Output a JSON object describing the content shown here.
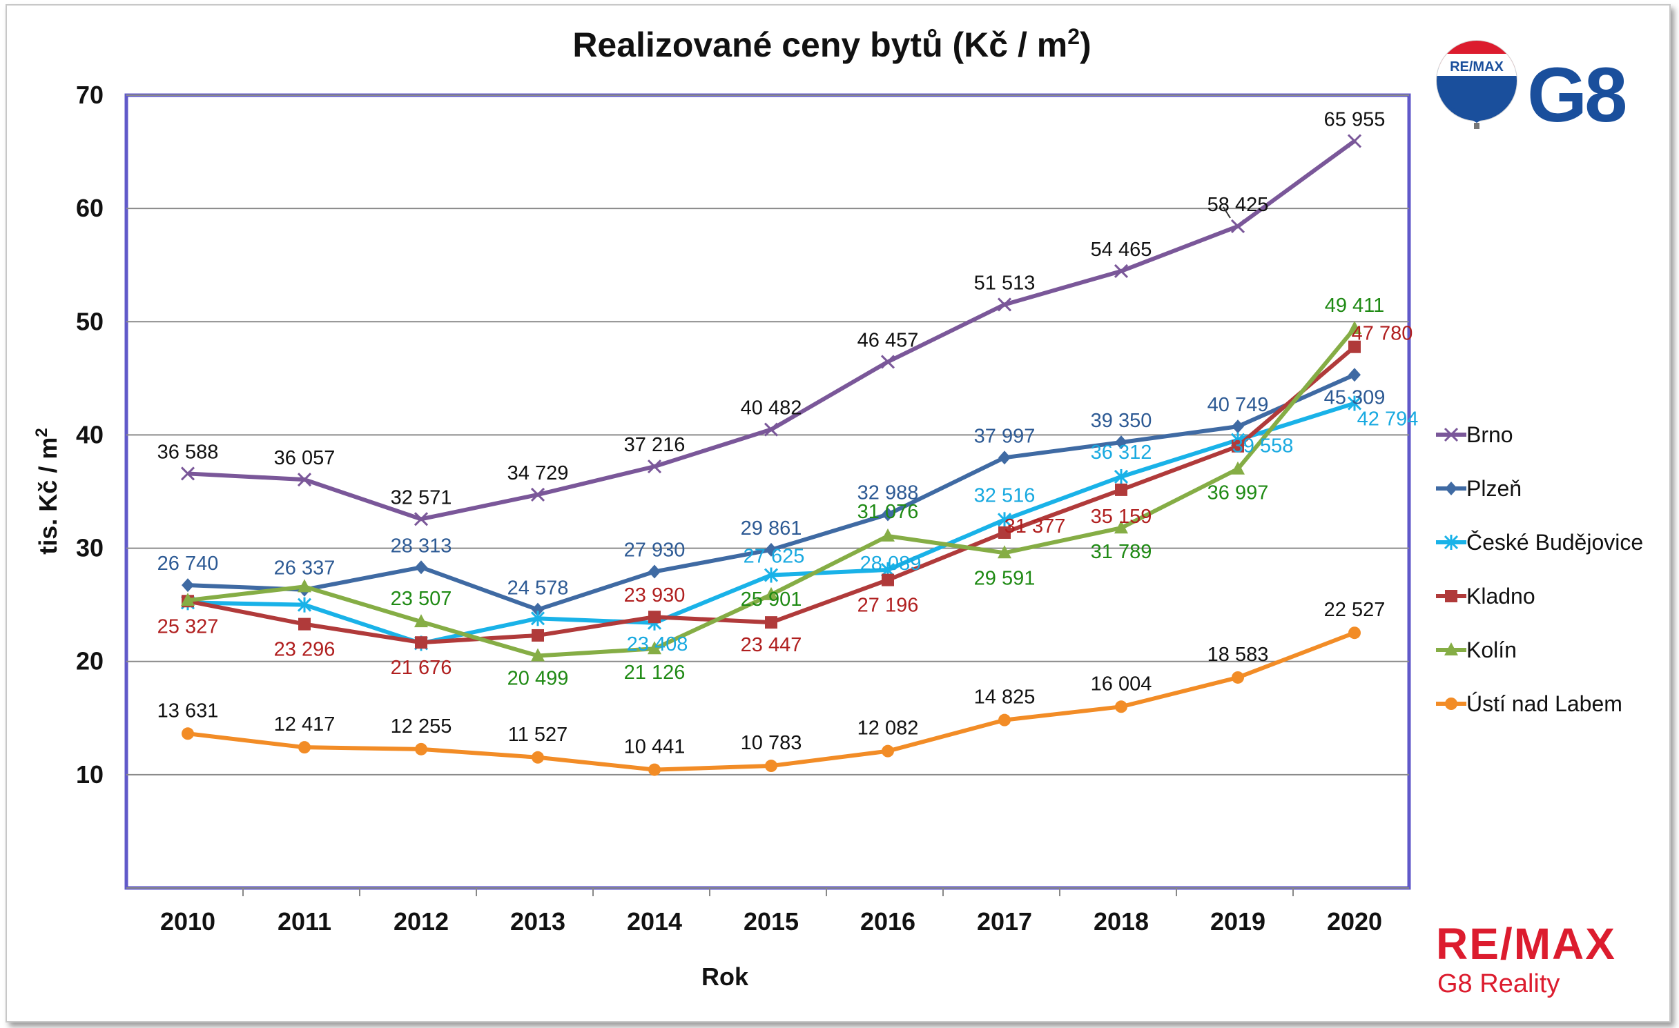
{
  "brand": {
    "balloon_text": "RE/MAX",
    "office_code": "G8",
    "wordmark": "RE/MAX",
    "office_name": "G8 Reality",
    "colors": {
      "red": "#dc1c2e",
      "blue": "#1a4f9c"
    }
  },
  "chart_data": {
    "type": "line",
    "title": "Realizované ceny bytů (Kč / m",
    "title_sup": "2",
    "title_end": ")",
    "ylabel": "tis. Kč / m",
    "ylabel_sup": "2",
    "xlabel": "Rok",
    "ylim": [
      0,
      70
    ],
    "yticks": [
      "10",
      "20",
      "30",
      "40",
      "50",
      "60",
      "70"
    ],
    "categories": [
      "2010",
      "2011",
      "2012",
      "2013",
      "2014",
      "2015",
      "2016",
      "2017",
      "2018",
      "2019",
      "2020"
    ],
    "grid": true,
    "legend_position": "right",
    "series": [
      {
        "name": "Brno",
        "color": "#7a5799",
        "label_color": "#111111",
        "marker": "x",
        "values": [
          36.588,
          36.057,
          32.571,
          34.729,
          37.216,
          40.482,
          46.457,
          51.513,
          54.465,
          58.425,
          65.955
        ],
        "labels": [
          "36 588",
          "36 057",
          "32 571",
          "34 729",
          "37 216",
          "40 482",
          "46 457",
          "51 513",
          "54 465",
          "58 425",
          "65 955"
        ]
      },
      {
        "name": "Plzeň",
        "color": "#3f6aa3",
        "label_color": "#2d5a94",
        "marker": "diamond",
        "values": [
          26.74,
          26.337,
          28.313,
          24.578,
          27.93,
          29.861,
          32.988,
          37.997,
          39.35,
          40.749,
          45.309
        ],
        "labels": [
          "26 740",
          "26 337",
          "28 313",
          "24 578",
          "27 930",
          "29 861",
          "32 988",
          "37 997",
          "39 350",
          "40 749",
          "45 309"
        ]
      },
      {
        "name": "České Budějovice",
        "color": "#19b2e8",
        "label_color": "#18a9e0",
        "marker": "star",
        "values": [
          25.2,
          25.0,
          21.6,
          23.8,
          23.408,
          27.625,
          28.089,
          32.516,
          36.312,
          39.558,
          42.794
        ],
        "labels": [
          "",
          "",
          "",
          "",
          "23 408",
          "27 625",
          "28 089",
          "32 516",
          "36 312",
          "39 558",
          "42 794"
        ]
      },
      {
        "name": "Kladno",
        "color": "#b03a3a",
        "label_color": "#b01f1f",
        "marker": "square",
        "values": [
          25.327,
          23.296,
          21.676,
          22.3,
          23.93,
          23.447,
          27.196,
          31.377,
          35.159,
          39.0,
          47.78
        ],
        "labels": [
          "25 327",
          "23 296",
          "21 676",
          "",
          "23 930",
          "23 447",
          "27 196",
          "31 377",
          "35 159",
          "",
          "47 780"
        ]
      },
      {
        "name": "Kolín",
        "color": "#85ad45",
        "label_color": "#1f8a14",
        "marker": "triangle",
        "values": [
          25.4,
          26.6,
          23.507,
          20.499,
          21.126,
          25.901,
          31.076,
          29.591,
          31.789,
          36.997,
          49.411
        ],
        "labels": [
          "",
          "",
          "23 507",
          "20 499",
          "21 126",
          "25 901",
          "31 076",
          "29 591",
          "31 789",
          "36 997",
          "49 411"
        ]
      },
      {
        "name": "Ústí nad Labem",
        "color": "#f28c26",
        "label_color": "#111111",
        "marker": "circle",
        "values": [
          13.631,
          12.417,
          12.255,
          11.527,
          10.441,
          10.783,
          12.082,
          14.825,
          16.004,
          18.583,
          22.527
        ],
        "labels": [
          "13 631",
          "12 417",
          "12 255",
          "11 527",
          "10 441",
          "10 783",
          "12 082",
          "14 825",
          "16 004",
          "18 583",
          "22 527"
        ]
      }
    ]
  }
}
